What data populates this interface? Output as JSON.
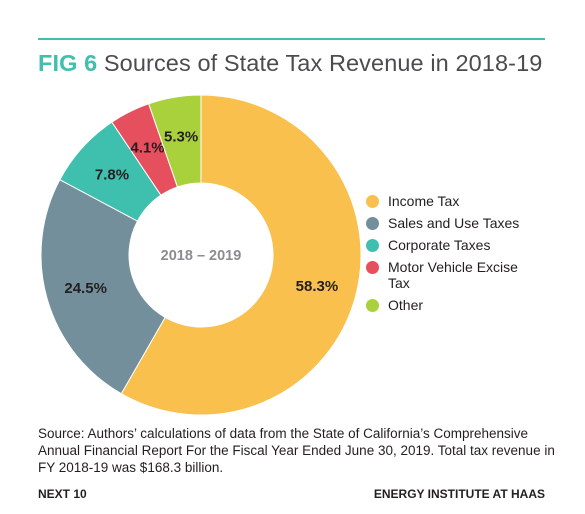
{
  "header": {
    "fig_label": "FIG 6",
    "title": "Sources of State Tax Revenue in 2018-19"
  },
  "colors": {
    "accent": "#3fbfae",
    "slice_colors": [
      "#f9c04e",
      "#738f9c",
      "#3fbfae",
      "#e6505e",
      "#a9d13c"
    ]
  },
  "chart_data": {
    "type": "pie",
    "donut": true,
    "center_label": "2018 – 2019",
    "categories": [
      "Income Tax",
      "Sales and Use Taxes",
      "Corporate Taxes",
      "Motor Vehicle Excise Tax",
      "Other"
    ],
    "values": [
      58.3,
      24.5,
      7.8,
      4.1,
      5.3
    ],
    "data_labels": [
      "58.3%",
      "24.5%",
      "7.8%",
      "4.1%",
      "5.3%"
    ],
    "legend_position": "right"
  },
  "legend": [
    {
      "label": "Income Tax"
    },
    {
      "label": "Sales and Use Taxes"
    },
    {
      "label": "Corporate Taxes"
    },
    {
      "label": "Motor Vehicle Excise Tax"
    },
    {
      "label": "Other"
    }
  ],
  "source_note": "Source: Authors’ calculations of data from the State of California’s Comprehensive Annual Financial Report For the Fiscal Year Ended June 30, 2019. Total tax revenue in FY 2018-19 was $168.3 billion.",
  "footer": {
    "left": "NEXT 10",
    "right": "ENERGY INSTITUTE AT HAAS"
  }
}
